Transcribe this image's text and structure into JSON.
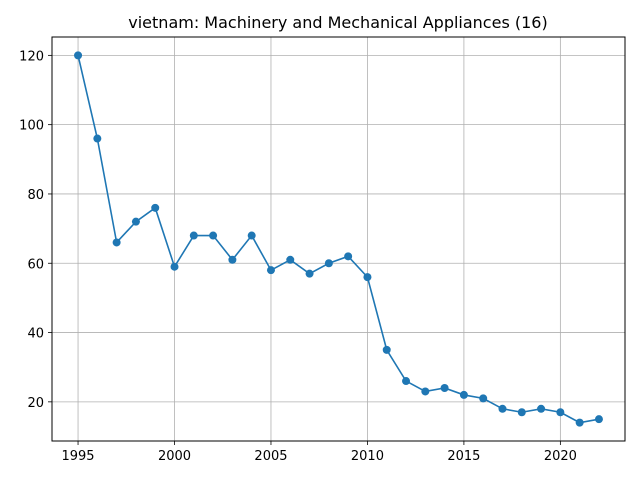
{
  "chart_data": {
    "type": "line",
    "title": "vietnam: Machinery and Mechanical Appliances (16)",
    "xlabel": "",
    "ylabel": "",
    "grid": true,
    "xlim": [
      1993.65,
      2023.35
    ],
    "ylim": [
      8.7,
      125.3
    ],
    "x_ticks": [
      1995,
      2000,
      2005,
      2010,
      2015,
      2020
    ],
    "y_ticks": [
      20,
      40,
      60,
      80,
      100,
      120
    ],
    "series_color": "#1f77b4",
    "series": [
      {
        "name": "vietnam",
        "x": [
          1995,
          1996,
          1997,
          1998,
          1999,
          2000,
          2001,
          2002,
          2003,
          2004,
          2005,
          2006,
          2007,
          2008,
          2009,
          2010,
          2011,
          2012,
          2013,
          2014,
          2015,
          2016,
          2017,
          2018,
          2019,
          2020,
          2021,
          2022
        ],
        "values": [
          120,
          96,
          66,
          72,
          76,
          59,
          68,
          68,
          61,
          68,
          58,
          61,
          57,
          60,
          62,
          56,
          35,
          26,
          23,
          24,
          22,
          21,
          18,
          17,
          18,
          17,
          14,
          15
        ]
      }
    ]
  }
}
